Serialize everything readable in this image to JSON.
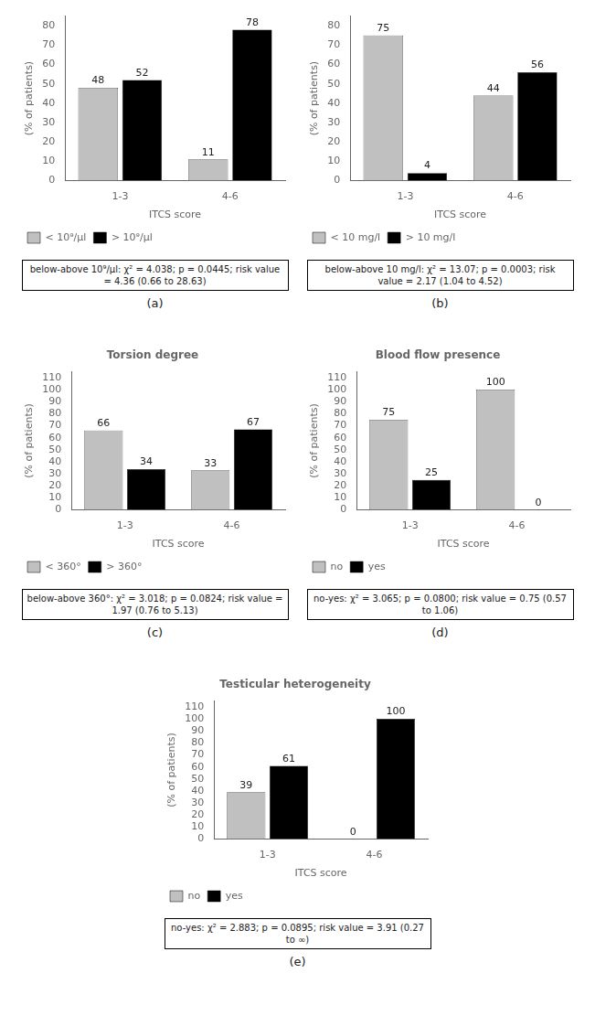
{
  "chart_data": [
    {
      "type": "bar",
      "categories": [
        "1-3",
        "4-6"
      ],
      "series": [
        {
          "name": "< 10⁹/μl",
          "color": "#c0c0c0",
          "values": [
            48,
            11
          ]
        },
        {
          "name": "> 10⁹/μl",
          "color": "#000000",
          "values": [
            52,
            78
          ]
        }
      ],
      "xlabel": "ITCS score",
      "ylabel": "(% of patients)",
      "ylim": [
        0,
        85
      ],
      "yticks": [
        0,
        10,
        20,
        30,
        40,
        50,
        60,
        70,
        80
      ],
      "grid": false,
      "legend": "bottom",
      "data_labels": true,
      "annotations": [
        "below-above 10⁹/μl: χ² = 4.038; p = 0.0445; risk value = 4.36 (0.66 to 28.63)",
        "(a)"
      ]
    },
    {
      "type": "bar",
      "categories": [
        "1-3",
        "4-6"
      ],
      "series": [
        {
          "name": "< 10 mg/l",
          "color": "#c0c0c0",
          "values": [
            75,
            44
          ]
        },
        {
          "name": "> 10 mg/l",
          "color": "#000000",
          "values": [
            4,
            56
          ]
        }
      ],
      "xlabel": "ITCS score",
      "ylabel": "(% of patients)",
      "ylim": [
        0,
        85
      ],
      "yticks": [
        0,
        10,
        20,
        30,
        40,
        50,
        60,
        70,
        80
      ],
      "grid": false,
      "legend": "bottom",
      "data_labels": true,
      "annotations": [
        "below-above 10 mg/l: χ² = 13.07; p = 0.0003; risk value = 2.17 (1.04 to 4.52)",
        "(b)"
      ]
    },
    {
      "type": "bar",
      "title": "Torsion degree",
      "categories": [
        "1-3",
        "4-6"
      ],
      "series": [
        {
          "name": "< 360°",
          "color": "#c0c0c0",
          "values": [
            66,
            33
          ]
        },
        {
          "name": "> 360°",
          "color": "#000000",
          "values": [
            34,
            67
          ]
        }
      ],
      "xlabel": "ITCS score",
      "ylabel": "(% of patients)",
      "ylim": [
        0,
        115
      ],
      "yticks": [
        0,
        10,
        20,
        30,
        40,
        50,
        60,
        70,
        80,
        90,
        100,
        110
      ],
      "grid": false,
      "legend": "bottom",
      "data_labels": true,
      "annotations": [
        "below-above 360°: χ² = 3.018; p = 0.0824; risk value = 1.97 (0.76 to 5.13)",
        "(c)"
      ]
    },
    {
      "type": "bar",
      "title": "Blood flow presence",
      "categories": [
        "1-3",
        "4-6"
      ],
      "series": [
        {
          "name": "no",
          "color": "#c0c0c0",
          "values": [
            75,
            100
          ]
        },
        {
          "name": "yes",
          "color": "#000000",
          "values": [
            25,
            0
          ]
        }
      ],
      "xlabel": "ITCS score",
      "ylabel": "(% of patients)",
      "ylim": [
        0,
        115
      ],
      "yticks": [
        0,
        10,
        20,
        30,
        40,
        50,
        60,
        70,
        80,
        90,
        100,
        110
      ],
      "grid": false,
      "legend": "bottom",
      "data_labels": true,
      "annotations": [
        "no-yes: χ² = 3.065; p = 0.0800; risk value = 0.75 (0.57 to 1.06)",
        "(d)"
      ]
    },
    {
      "type": "bar",
      "title": "Testicular heterogeneity",
      "categories": [
        "1-3",
        "4-6"
      ],
      "series": [
        {
          "name": "no",
          "color": "#c0c0c0",
          "values": [
            39,
            0
          ]
        },
        {
          "name": "yes",
          "color": "#000000",
          "values": [
            61,
            100
          ]
        }
      ],
      "xlabel": "ITCS score",
      "ylabel": "(% of patients)",
      "ylim": [
        0,
        115
      ],
      "yticks": [
        0,
        10,
        20,
        30,
        40,
        50,
        60,
        70,
        80,
        90,
        100,
        110
      ],
      "grid": false,
      "legend": "bottom",
      "data_labels": true,
      "annotations": [
        "no-yes: χ² = 2.883; p = 0.0895; risk value = 3.91 (0.27 to ∞)",
        "(e)"
      ]
    }
  ]
}
